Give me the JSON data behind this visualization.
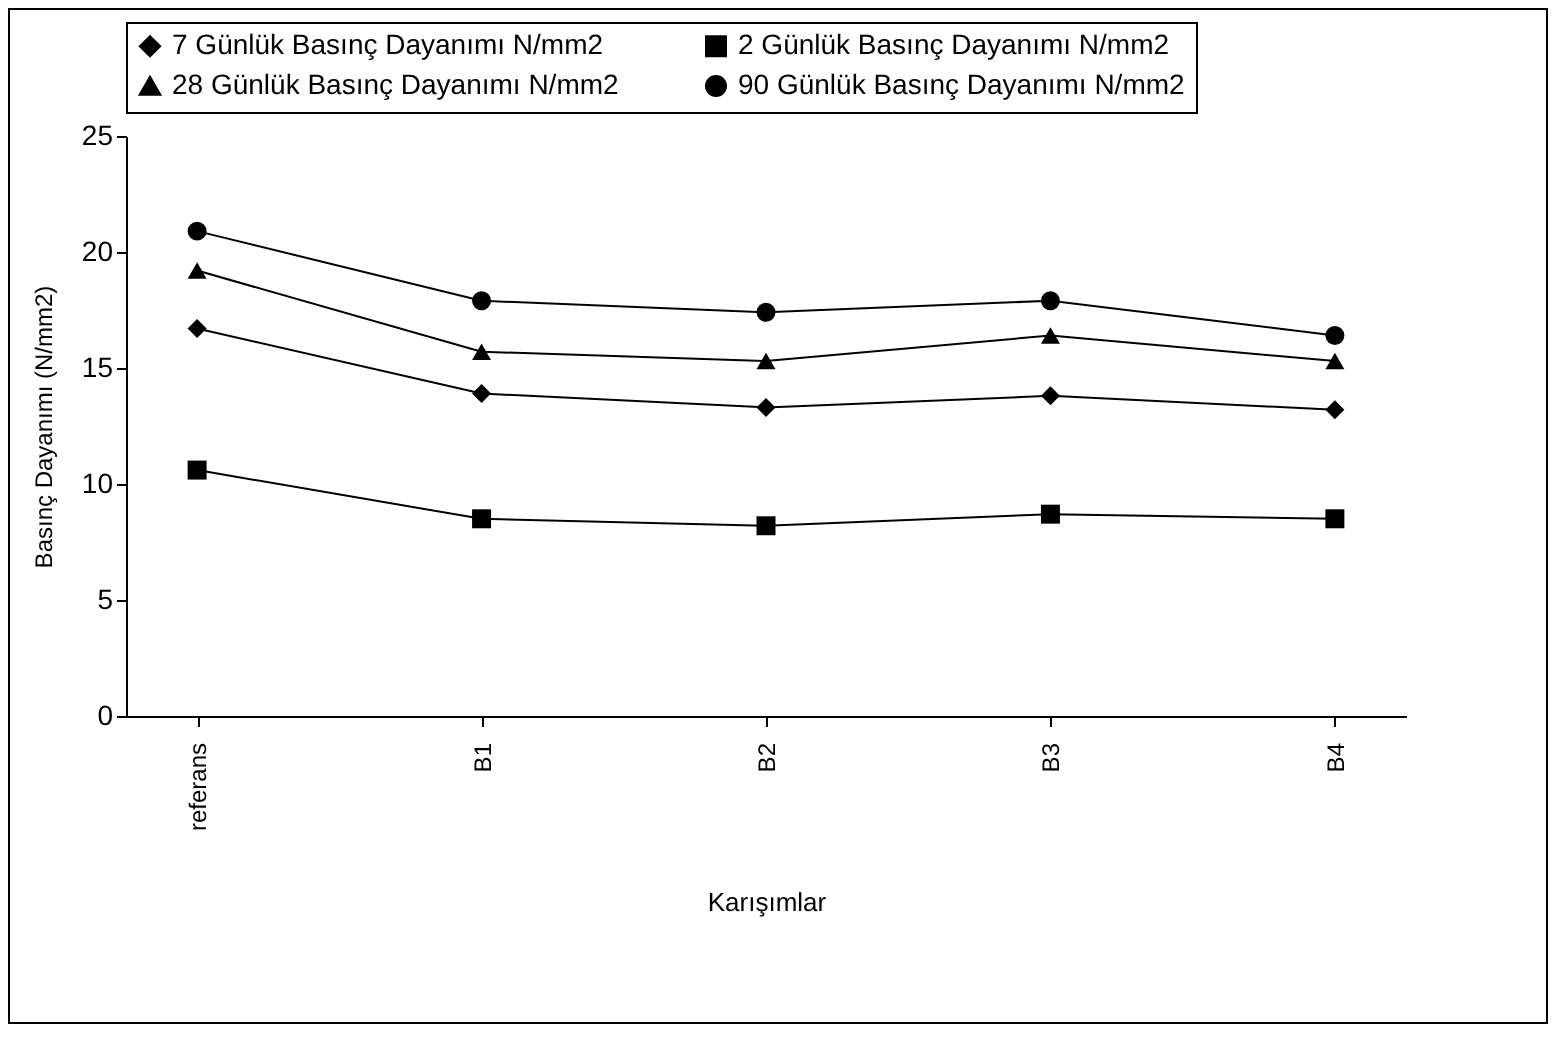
{
  "chart_data": {
    "type": "line",
    "xlabel": "Karışımlar",
    "ylabel": "Basınç Dayanımı (N/mm2)",
    "categories": [
      "referans",
      "B1",
      "B2",
      "B3",
      "B4"
    ],
    "series": [
      {
        "name": "7 Günlük Basınç Dayanımı N/mm2",
        "color": "#000000",
        "marker": "diamond",
        "values": [
          16.7,
          13.9,
          13.3,
          13.8,
          13.2
        ]
      },
      {
        "name": "2 Günlük Basınç Dayanımı N/mm2",
        "color": "#000000",
        "marker": "square",
        "values": [
          10.6,
          8.5,
          8.2,
          8.7,
          8.5
        ]
      },
      {
        "name": "28 Günlük Basınç Dayanımı N/mm2",
        "color": "#000000",
        "marker": "triangle",
        "values": [
          19.2,
          15.7,
          15.3,
          16.4,
          15.3
        ]
      },
      {
        "name": "90 Günlük Basınç Dayanımı N/mm2",
        "color": "#000000",
        "marker": "circle",
        "values": [
          20.9,
          17.9,
          17.4,
          17.9,
          16.4
        ]
      }
    ],
    "ylim": [
      0,
      25
    ],
    "yticks": [
      0,
      5,
      10,
      15,
      20,
      25
    ],
    "grid": false,
    "legend": "top",
    "line_style": "solid"
  }
}
